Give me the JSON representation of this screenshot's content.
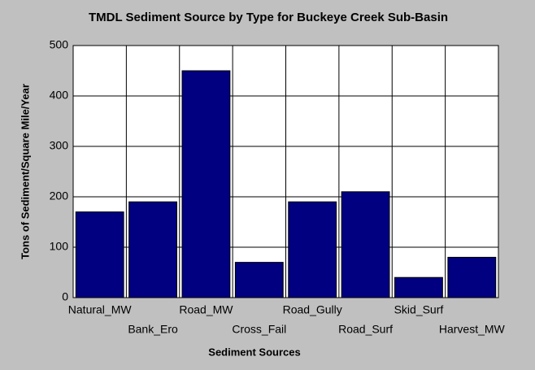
{
  "chart_data": {
    "type": "bar",
    "title": "TMDL Sediment Source by Type for Buckeye Creek Sub-Basin",
    "x_label": "Sediment Sources",
    "y_label": "Tons of Sediment/Square Mile/Year",
    "categories": [
      "Natural_MW",
      "Bank_Ero",
      "Road_MW",
      "Cross_Fail",
      "Road_Gully",
      "Road_Surf",
      "Skid_Surf",
      "Harvest_MW"
    ],
    "values": [
      170,
      190,
      450,
      70,
      190,
      210,
      40,
      80
    ],
    "color": "#000080",
    "ylim": [
      0,
      500
    ],
    "yticks": [
      0,
      100,
      200,
      300,
      400,
      500
    ],
    "grid": true
  }
}
